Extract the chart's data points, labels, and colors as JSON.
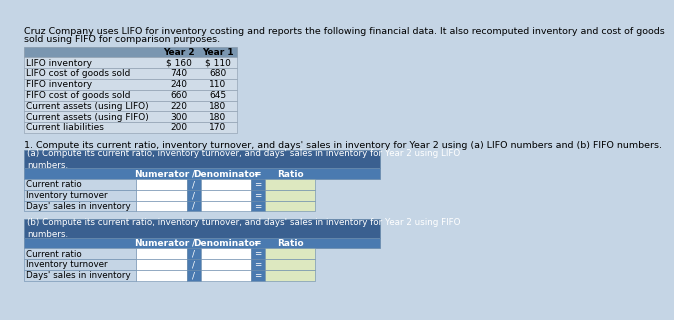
{
  "page_bg": "#c5d5e5",
  "intro_text_line1": "Cruz Company uses LIFO for inventory costing and reports the following financial data. It also recomputed inventory and cost of goods",
  "intro_text_line2": "sold using FIFO for comparison purposes.",
  "table1_rows": [
    [
      "LIFO inventory",
      "$ 160",
      "$ 110"
    ],
    [
      "LIFO cost of goods sold",
      "740",
      "680"
    ],
    [
      "FIFO inventory",
      "240",
      "110"
    ],
    [
      "FIFO cost of goods sold",
      "660",
      "645"
    ],
    [
      "Current assets (using LIFO)",
      "220",
      "180"
    ],
    [
      "Current assets (using FIFO)",
      "300",
      "180"
    ],
    [
      "Current liabilities",
      "200",
      "170"
    ]
  ],
  "table1_header_bg": "#7a96b0",
  "table1_row_bg": "#d0dce8",
  "table1_border": "#8899aa",
  "question_text": "1. Compute its current ratio, inventory turnover, and days' sales in inventory for Year 2 using (a) LIFO numbers and (b) FIFO numbers.",
  "section_a_title": "(a) Compute its current ratio, inventory turnover, and days' sales in inventory for Year 2 using LIFO\nnumbers.",
  "section_b_title": "(b) Compute its current ratio, inventory turnover, and days' sales in inventory for Year 2 using FIFO\nnumbers.",
  "section_rows": [
    "Current ratio",
    "Inventory turnover",
    "Days' sales in inventory"
  ],
  "section_title_bg": "#3a6090",
  "section_header_bg": "#4a7ab0",
  "section_label_bg": "#c5d5e5",
  "section_cell_bg": "#ffffff",
  "section_eq_bg": "#4a7ab0",
  "section_ratio_bg": "#dde8c0",
  "section_border": "#6688aa",
  "font_size_intro": 6.8,
  "font_size_table": 6.5,
  "font_size_question": 6.8,
  "font_size_section_title": 6.3,
  "font_size_header": 6.5,
  "font_size_row": 6.3
}
